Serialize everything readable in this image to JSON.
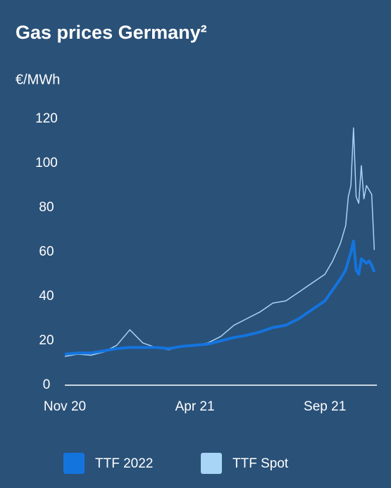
{
  "chart_data": {
    "type": "line",
    "title": "Gas prices Germany²",
    "y_label": "€/MWh",
    "x": [
      0,
      0.5,
      1,
      1.5,
      2,
      2.5,
      3,
      3.5,
      4,
      4.5,
      5,
      5.5,
      6,
      6.5,
      7,
      7.5,
      8,
      8.5,
      9,
      9.5,
      10,
      10.3,
      10.6,
      10.8,
      10.9,
      11.0,
      11.1,
      11.2,
      11.3,
      11.4,
      11.5,
      11.6,
      11.7,
      11.8,
      11.9
    ],
    "xlim": [
      0,
      12
    ],
    "xticks": [
      {
        "value": 0,
        "label": "Nov 20"
      },
      {
        "value": 5,
        "label": "Apr 21"
      },
      {
        "value": 10,
        "label": "Sep 21"
      }
    ],
    "ylim": [
      0,
      120
    ],
    "yticks": [
      0,
      20,
      40,
      60,
      80,
      100,
      120
    ],
    "grid": false,
    "series": [
      {
        "name": "TTF 2022",
        "color": "#1474de",
        "width": 4,
        "values": [
          14,
          14.5,
          14.5,
          15.5,
          16.5,
          17,
          17,
          17,
          16.5,
          17.5,
          18,
          18.5,
          20,
          21.5,
          22.5,
          24,
          26,
          27,
          30,
          34,
          38,
          43,
          48,
          52,
          56,
          60,
          65,
          52,
          50,
          57,
          56,
          55,
          56,
          54,
          51
        ]
      },
      {
        "name": "TTF Spot",
        "color": "#a8d4f5",
        "width": 1.5,
        "values": [
          13,
          14,
          13.5,
          15,
          18,
          25,
          19,
          17,
          16,
          17.5,
          18,
          19,
          22,
          27,
          30,
          33,
          37,
          38,
          42,
          46,
          50,
          56,
          64,
          72,
          85,
          90,
          116,
          85,
          82,
          99,
          84,
          90,
          88,
          86,
          61
        ]
      }
    ]
  }
}
